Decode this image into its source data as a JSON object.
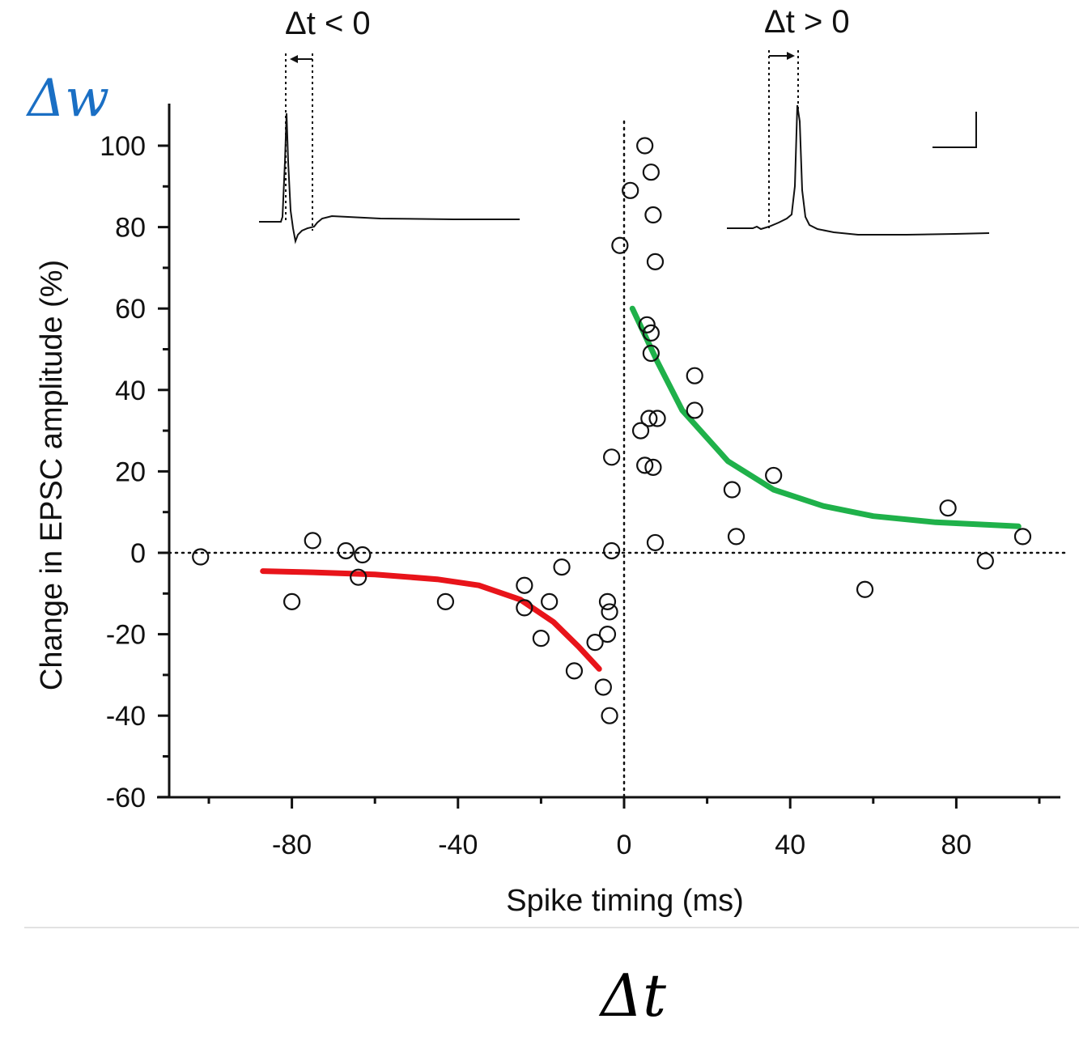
{
  "chart_data": {
    "type": "scatter",
    "xlabel": "Spike timing (ms)",
    "ylabel": "Change in EPSC amplitude (%)",
    "xlim": [
      -110,
      110
    ],
    "ylim": [
      -60,
      110
    ],
    "x_ticks": [
      -80,
      -40,
      0,
      40,
      80
    ],
    "x_tick_labels": [
      "-80",
      "-40",
      "0",
      "40",
      "80"
    ],
    "y_ticks": [
      -60,
      -40,
      -20,
      0,
      20,
      40,
      60,
      80,
      100
    ],
    "y_tick_labels": [
      "-60",
      "-40",
      "-20",
      "0",
      "20",
      "40",
      "60",
      "80",
      "100"
    ],
    "reference_lines": {
      "x0_dotted": true,
      "y0_dotted": true
    },
    "grid": false,
    "points": [
      {
        "x": -102,
        "y": -1
      },
      {
        "x": -80,
        "y": -12
      },
      {
        "x": -75,
        "y": 3
      },
      {
        "x": -67,
        "y": 0.5
      },
      {
        "x": -64,
        "y": -6
      },
      {
        "x": -63,
        "y": -0.5
      },
      {
        "x": -43,
        "y": -12
      },
      {
        "x": -24,
        "y": -8
      },
      {
        "x": -24,
        "y": -13.5
      },
      {
        "x": -20,
        "y": -21
      },
      {
        "x": -18,
        "y": -12
      },
      {
        "x": -15,
        "y": -3.5
      },
      {
        "x": -12,
        "y": -29
      },
      {
        "x": -7,
        "y": -22
      },
      {
        "x": -5,
        "y": -33
      },
      {
        "x": -4,
        "y": -12
      },
      {
        "x": -4,
        "y": -20
      },
      {
        "x": -3.5,
        "y": -14.5
      },
      {
        "x": -3.5,
        "y": -40
      },
      {
        "x": -3,
        "y": 0.5
      },
      {
        "x": -3,
        "y": 23.5
      },
      {
        "x": -1,
        "y": 75.5
      },
      {
        "x": 1.5,
        "y": 89
      },
      {
        "x": 4,
        "y": 30
      },
      {
        "x": 5,
        "y": 100
      },
      {
        "x": 5,
        "y": 21.5
      },
      {
        "x": 5.5,
        "y": 56
      },
      {
        "x": 6,
        "y": 33
      },
      {
        "x": 6.5,
        "y": 93.5
      },
      {
        "x": 6.5,
        "y": 54
      },
      {
        "x": 6.5,
        "y": 49
      },
      {
        "x": 7,
        "y": 83
      },
      {
        "x": 7,
        "y": 21
      },
      {
        "x": 7.5,
        "y": 71.5
      },
      {
        "x": 7.5,
        "y": 2.5
      },
      {
        "x": 8,
        "y": 33
      },
      {
        "x": 17,
        "y": 43.5
      },
      {
        "x": 17,
        "y": 35
      },
      {
        "x": 26,
        "y": 15.5
      },
      {
        "x": 27,
        "y": 4
      },
      {
        "x": 36,
        "y": 19
      },
      {
        "x": 58,
        "y": -9
      },
      {
        "x": 78,
        "y": 11
      },
      {
        "x": 87,
        "y": -2
      },
      {
        "x": 96,
        "y": 4
      }
    ],
    "fit_curves": [
      {
        "color": "#e8141a",
        "points": [
          [
            -87,
            -4.5
          ],
          [
            -75,
            -4.8
          ],
          [
            -60,
            -5.3
          ],
          [
            -45,
            -6.5
          ],
          [
            -35,
            -8
          ],
          [
            -25,
            -11.5
          ],
          [
            -17,
            -17
          ],
          [
            -11,
            -23
          ],
          [
            -6,
            -28.5
          ]
        ]
      },
      {
        "color": "#1fb14a",
        "points": [
          [
            2,
            60
          ],
          [
            8,
            47
          ],
          [
            14,
            35
          ],
          [
            25,
            22.5
          ],
          [
            36,
            15.5
          ],
          [
            48,
            11.5
          ],
          [
            60,
            9
          ],
          [
            75,
            7.5
          ],
          [
            95,
            6.5
          ]
        ]
      }
    ]
  },
  "insets": {
    "left_label": "Δt < 0",
    "right_label": "Δt > 0"
  },
  "annotations": {
    "dw_label": "Δw",
    "dw_color": "#1a6fc4",
    "dt_label": "Δt"
  }
}
